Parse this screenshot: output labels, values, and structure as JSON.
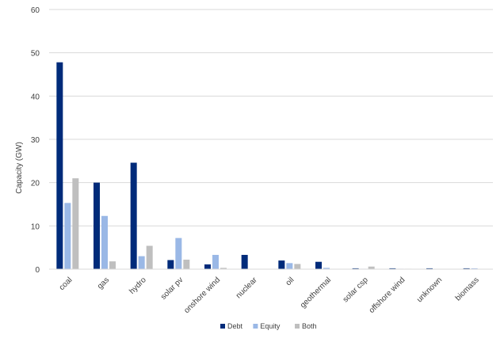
{
  "chart_data": {
    "type": "bar",
    "title": "",
    "xlabel": "",
    "ylabel": "Capacity (GW)",
    "ylim": [
      0,
      60
    ],
    "yticks": [
      0,
      10,
      20,
      30,
      40,
      50,
      60
    ],
    "grid": true,
    "legend_position": "bottom",
    "categories": [
      "coal",
      "gas",
      "hydro",
      "solar pv",
      "onshore wind",
      "nuclear",
      "oil",
      "geothermal",
      "solar csp",
      "offshore wind",
      "unknown",
      "biomass"
    ],
    "series": [
      {
        "name": "Debt",
        "color": "#002b7a",
        "values": [
          47.8,
          20.0,
          24.6,
          2.1,
          1.1,
          3.3,
          2.0,
          1.7,
          0.2,
          0.2,
          0.2,
          0.2
        ]
      },
      {
        "name": "Equity",
        "color": "#9ab8e6",
        "values": [
          15.3,
          12.3,
          3.0,
          7.2,
          3.3,
          0,
          1.4,
          0.3,
          0.1,
          0.1,
          0,
          0.2
        ]
      },
      {
        "name": "Both",
        "color": "#bfbfbf",
        "values": [
          21.0,
          1.8,
          5.4,
          2.2,
          0.3,
          0,
          1.2,
          0,
          0.6,
          0.1,
          0,
          0
        ]
      }
    ]
  }
}
